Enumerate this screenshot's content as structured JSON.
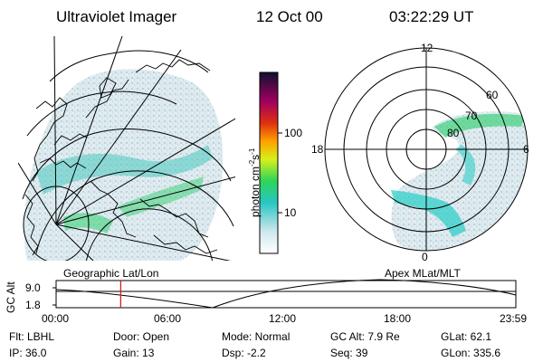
{
  "header": {
    "title": "Ultraviolet Imager",
    "date": "12 Oct 00",
    "time": "03:22:29 UT"
  },
  "left_panel": {
    "caption": "Geographic Lat/Lon"
  },
  "right_panel": {
    "caption": "Apex MLat/MLT",
    "mlt_labels": {
      "top": "12",
      "left": "18",
      "right": "6",
      "bottom": "0"
    },
    "lat_labels": [
      "60",
      "70",
      "80"
    ]
  },
  "colorbar": {
    "ticks": [
      "100",
      "10"
    ],
    "unit_label": "photon cm",
    "unit_sup1": "-2",
    "unit_mid": "s",
    "unit_sup2": "-1"
  },
  "altitude_plot": {
    "ylabel": "GC Alt",
    "yticks": [
      "9.0",
      "1.8"
    ],
    "xticks": [
      "00:00",
      "06:00",
      "12:00",
      "18:00",
      "23:59"
    ],
    "marker_time_hours": 3.37,
    "marker_color": "#d02020"
  },
  "info": {
    "flt": "Flt: LBHL",
    "ip": "IP: 36.0",
    "door": "Door: Open",
    "gain": "Gain: 13",
    "mode": "Mode: Normal",
    "dsp": "Dsp:    -2.2",
    "gcalt": "GC Alt: 7.9 Re",
    "seq": "Seq: 39",
    "glat": "GLat:  62.1",
    "glon": "GLon: 335.6"
  },
  "colors": {
    "emission_low": "#d6e6ee",
    "emission_mid": "#38cfc6",
    "emission_high": "#35d36a"
  }
}
